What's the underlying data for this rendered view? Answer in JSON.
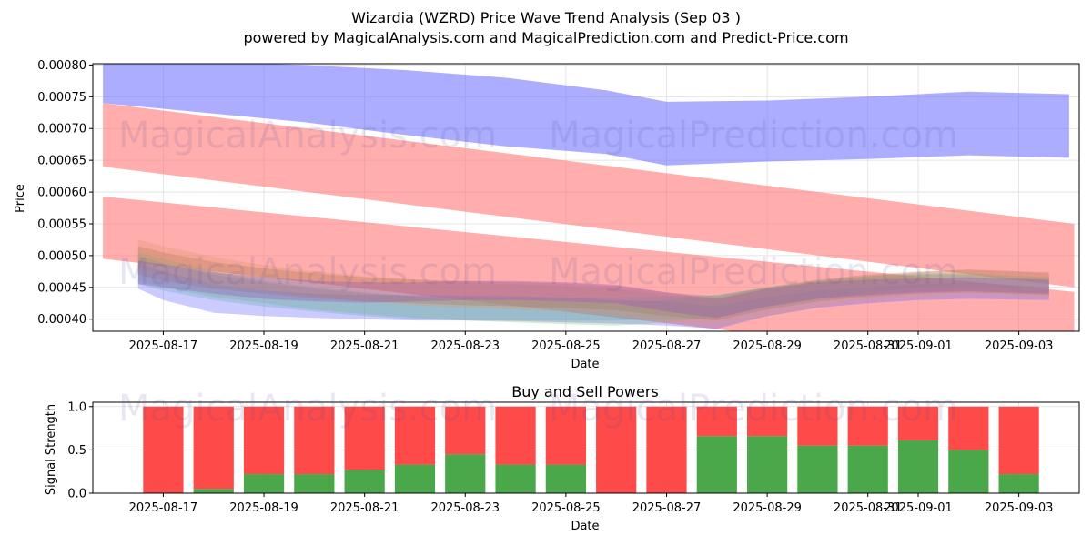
{
  "chart_data": [
    {
      "type": "area",
      "title": "Wizardia (WZRD) Price Wave Trend Analysis (Sep 03 )",
      "subtitle": "powered by MagicalAnalysis.com and MagicalPrediction.com and Predict-Price.com",
      "xlabel": "Date",
      "ylabel": "Price",
      "ylim": [
        0.000381,
        0.000802
      ],
      "yticks": [
        "0.00040",
        "0.00045",
        "0.00050",
        "0.00055",
        "0.00060",
        "0.00065",
        "0.00070",
        "0.00075",
        "0.00080"
      ],
      "ytick_values": [
        0.0004,
        0.00045,
        0.0005,
        0.00055,
        0.0006,
        0.00065,
        0.0007,
        0.00075,
        0.0008
      ],
      "xticks": [
        "2025-08-17",
        "2025-08-19",
        "2025-08-21",
        "2025-08-23",
        "2025-08-25",
        "2025-08-27",
        "2025-08-29",
        "2025-08-31",
        "2025-09-01",
        "2025-09-03"
      ],
      "xtick_days": [
        16,
        18,
        20,
        22,
        24,
        26,
        28,
        30,
        31,
        33
      ],
      "xlim_days": [
        14.6,
        34.2
      ],
      "grid": true,
      "bands": [
        {
          "name": "blue-upper",
          "color": "#7777ff",
          "opacity": 0.6,
          "x": [
            14.8,
            16.8,
            18.8,
            20.8,
            22.8,
            24.8,
            26,
            28,
            30,
            32,
            34
          ],
          "low": [
            0.00074,
            0.000725,
            0.00071,
            0.00069,
            0.000672,
            0.00066,
            0.000642,
            0.000648,
            0.000652,
            0.000658,
            0.000654
          ],
          "high": [
            0.00081,
            0.000805,
            0.0008,
            0.000792,
            0.00078,
            0.00076,
            0.000742,
            0.000744,
            0.00075,
            0.000758,
            0.000754
          ]
        },
        {
          "name": "red-upper",
          "color": "#ff7777",
          "opacity": 0.6,
          "x": [
            14.8,
            34.1
          ],
          "low": [
            0.00064,
            0.00045
          ],
          "high": [
            0.00074,
            0.00055
          ]
        },
        {
          "name": "red-lower",
          "color": "#ff7777",
          "opacity": 0.6,
          "x": [
            14.8,
            34.1
          ],
          "low": [
            0.000495,
            0.00032
          ],
          "high": [
            0.000593,
            0.000443
          ]
        }
      ],
      "wave_series": [
        {
          "name": "blue-wave",
          "color": "#6a6aff",
          "opacity": 0.35,
          "x": [
            15.5,
            16,
            17,
            18,
            19,
            20,
            21,
            22,
            23,
            24,
            25,
            26,
            27,
            28,
            29,
            30,
            31,
            32,
            33.6
          ],
          "low": [
            0.000448,
            0.00043,
            0.00041,
            0.000405,
            0.000402,
            0.0004,
            0.000398,
            0.000398,
            0.000397,
            0.000395,
            0.000393,
            0.00039,
            0.000385,
            0.000405,
            0.000418,
            0.000425,
            0.00043,
            0.000432,
            0.00043
          ],
          "high": [
            0.00049,
            0.000475,
            0.000455,
            0.000445,
            0.00044,
            0.000438,
            0.000438,
            0.000437,
            0.000436,
            0.000434,
            0.00043,
            0.000428,
            0.00042,
            0.000435,
            0.000445,
            0.00045,
            0.000455,
            0.000458,
            0.00045
          ]
        },
        {
          "name": "green-wave",
          "color": "#77bb77",
          "opacity": 0.3,
          "x": [
            15.5,
            16,
            17,
            18,
            19,
            20,
            21,
            22,
            23,
            24,
            25,
            26,
            27,
            28,
            29,
            30,
            31,
            32,
            33.6
          ],
          "low": [
            0.00046,
            0.00045,
            0.000435,
            0.000425,
            0.000415,
            0.000408,
            0.000402,
            0.000398,
            0.000395,
            0.000392,
            0.00039,
            0.000395,
            0.000405,
            0.00042,
            0.000432,
            0.00044,
            0.000445,
            0.000448,
            0.000442
          ],
          "high": [
            0.000505,
            0.000495,
            0.000475,
            0.00046,
            0.00045,
            0.000442,
            0.000436,
            0.000432,
            0.00043,
            0.000428,
            0.000426,
            0.00043,
            0.000438,
            0.00045,
            0.00046,
            0.000465,
            0.00047,
            0.00047,
            0.000462
          ]
        },
        {
          "name": "teal-wave",
          "color": "#66aabb",
          "opacity": 0.3,
          "x": [
            15.5,
            16,
            17,
            18,
            19,
            20,
            21,
            22,
            23,
            24,
            25,
            26,
            27,
            28,
            29,
            30,
            31,
            32,
            33.6
          ],
          "low": [
            0.000455,
            0.000445,
            0.00043,
            0.00042,
            0.000412,
            0.000405,
            0.0004,
            0.000398,
            0.000398,
            0.000398,
            0.000398,
            0.0004,
            0.000402,
            0.000418,
            0.000432,
            0.000442,
            0.00045,
            0.000452,
            0.000448
          ],
          "high": [
            0.0005,
            0.000488,
            0.00047,
            0.000458,
            0.000448,
            0.00044,
            0.000436,
            0.000434,
            0.000434,
            0.000434,
            0.000434,
            0.000436,
            0.000438,
            0.00045,
            0.00046,
            0.000468,
            0.000472,
            0.000472,
            0.000466
          ]
        },
        {
          "name": "orange-wave",
          "color": "#dd9966",
          "opacity": 0.3,
          "x": [
            15.5,
            16,
            17,
            18,
            19,
            20,
            21,
            22,
            23,
            24,
            25,
            26,
            27,
            28,
            29,
            30,
            31,
            32,
            33.6
          ],
          "low": [
            0.00048,
            0.00047,
            0.000455,
            0.000445,
            0.000435,
            0.000428,
            0.000422,
            0.000418,
            0.000415,
            0.000412,
            0.000405,
            0.000395,
            0.00039,
            0.000405,
            0.00042,
            0.00043,
            0.000435,
            0.00044,
            0.000435
          ],
          "high": [
            0.000525,
            0.000515,
            0.000498,
            0.000485,
            0.000475,
            0.000468,
            0.000462,
            0.000458,
            0.000455,
            0.000452,
            0.000448,
            0.000438,
            0.000432,
            0.000448,
            0.00046,
            0.000468,
            0.000474,
            0.000478,
            0.000472
          ]
        },
        {
          "name": "brown-wave",
          "color": "#aa7755",
          "opacity": 0.28,
          "x": [
            15.5,
            16,
            17,
            18,
            19,
            20,
            21,
            22,
            23,
            24,
            25,
            26,
            27,
            28,
            29,
            30,
            31,
            32,
            33.6
          ],
          "low": [
            0.00047,
            0.00046,
            0.000448,
            0.00044,
            0.000433,
            0.000428,
            0.000425,
            0.000422,
            0.00042,
            0.000418,
            0.000414,
            0.000405,
            0.000398,
            0.000415,
            0.000428,
            0.000435,
            0.00044,
            0.000442,
            0.000438
          ],
          "high": [
            0.000515,
            0.000505,
            0.00049,
            0.00048,
            0.000472,
            0.000466,
            0.000462,
            0.00046,
            0.000458,
            0.000456,
            0.000452,
            0.000442,
            0.000436,
            0.00045,
            0.000462,
            0.00047,
            0.000475,
            0.000478,
            0.000474
          ]
        },
        {
          "name": "purple-wave",
          "color": "#9955bb",
          "opacity": 0.35,
          "x": [
            15.5,
            16,
            17,
            18,
            19,
            20,
            21,
            22,
            23,
            24,
            25,
            26,
            27,
            28,
            29,
            30,
            31,
            32,
            33.6
          ],
          "low": [
            0.000455,
            0.00045,
            0.00044,
            0.000432,
            0.000428,
            0.000426,
            0.000428,
            0.00043,
            0.00043,
            0.000428,
            0.000425,
            0.000412,
            0.000402,
            0.00042,
            0.000432,
            0.000438,
            0.000442,
            0.000444,
            0.00044
          ],
          "high": [
            0.000492,
            0.000486,
            0.000474,
            0.000466,
            0.00046,
            0.000458,
            0.000458,
            0.00046,
            0.00046,
            0.000458,
            0.000454,
            0.000442,
            0.000432,
            0.000448,
            0.000458,
            0.000462,
            0.000464,
            0.000466,
            0.000462
          ]
        }
      ]
    },
    {
      "type": "bar",
      "title": "Buy and Sell Powers",
      "xlabel": "Date",
      "ylabel": "Signal Strength",
      "ylim": [
        0,
        1.05
      ],
      "yticks": [
        "0.0",
        "0.5",
        "1.0"
      ],
      "ytick_values": [
        0,
        0.5,
        1.0
      ],
      "xticks": [
        "2025-08-17",
        "2025-08-19",
        "2025-08-21",
        "2025-08-23",
        "2025-08-25",
        "2025-08-27",
        "2025-08-29",
        "2025-08-31",
        "2025-09-01",
        "2025-09-03"
      ],
      "xtick_days": [
        16,
        18,
        20,
        22,
        24,
        26,
        28,
        30,
        31,
        33
      ],
      "xlim_days": [
        14.6,
        34.2
      ],
      "grid": true,
      "categories": [
        "2025-08-17",
        "2025-08-18",
        "2025-08-19",
        "2025-08-20",
        "2025-08-21",
        "2025-08-22",
        "2025-08-23",
        "2025-08-24",
        "2025-08-25",
        "2025-08-26",
        "2025-08-27",
        "2025-08-28",
        "2025-08-29",
        "2025-08-30",
        "2025-08-31",
        "2025-09-01",
        "2025-09-02",
        "2025-09-03"
      ],
      "bar_days": [
        16,
        17,
        18,
        19,
        20,
        21,
        22,
        23,
        24,
        25,
        26,
        27,
        28,
        29,
        30,
        31,
        32,
        33
      ],
      "series": [
        {
          "name": "Buy",
          "color": "#4aa84a",
          "values": [
            0.0,
            0.05,
            0.22,
            0.22,
            0.27,
            0.33,
            0.45,
            0.33,
            0.33,
            0.0,
            0.0,
            0.66,
            0.66,
            0.55,
            0.55,
            0.61,
            0.5,
            0.22
          ]
        },
        {
          "name": "Sell",
          "color": "#ff4a4a",
          "values": [
            1.0,
            0.95,
            0.78,
            0.78,
            0.73,
            0.67,
            0.55,
            0.67,
            0.67,
            1.0,
            1.0,
            0.34,
            0.34,
            0.45,
            0.45,
            0.39,
            0.5,
            0.78
          ]
        }
      ]
    }
  ],
  "watermarks": [
    {
      "text": "MagicalAnalysis.com"
    },
    {
      "text": "MagicalPrediction.com"
    }
  ]
}
